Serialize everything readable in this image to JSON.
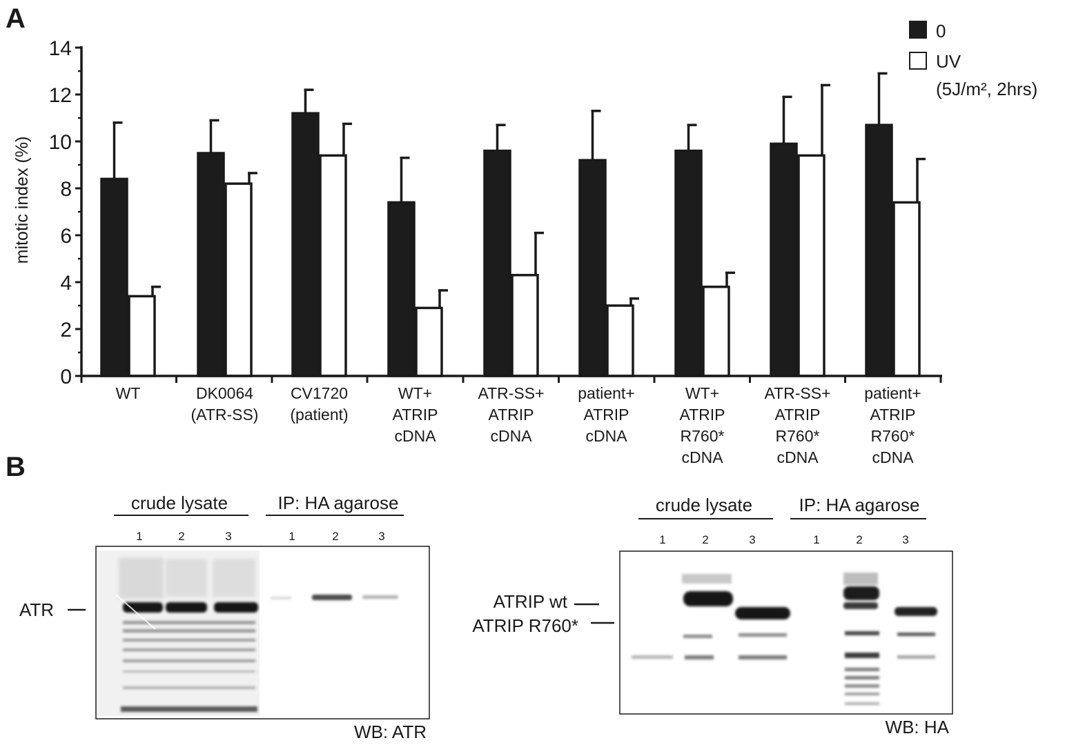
{
  "panel_a_label": "A",
  "panel_b_label": "B",
  "chart_data": {
    "type": "bar",
    "ylabel": "mitotic index (%)",
    "xlabel": "",
    "ylim": [
      0,
      14
    ],
    "yticks": [
      "0",
      "2",
      "4",
      "6",
      "8",
      "10",
      "12",
      "14"
    ],
    "grid": false,
    "legend_position": "top-right",
    "categories": [
      [
        "WT"
      ],
      [
        "DK0064",
        "(ATR-SS)"
      ],
      [
        "CV1720",
        "(patient)"
      ],
      [
        "WT+",
        "ATRIP",
        "cDNA"
      ],
      [
        "ATR-SS+",
        "ATRIP",
        "cDNA"
      ],
      [
        "patient+",
        "ATRIP",
        "cDNA"
      ],
      [
        "WT+",
        "ATRIP",
        "R760*",
        "cDNA"
      ],
      [
        "ATR-SS+",
        "ATRIP",
        "R760*",
        "cDNA"
      ],
      [
        "patient+",
        "ATRIP",
        "R760*",
        "cDNA"
      ]
    ],
    "series": [
      {
        "name": "0",
        "color": "#1c1c1c",
        "values": [
          8.4,
          9.5,
          11.2,
          7.4,
          9.6,
          9.2,
          9.6,
          9.9,
          10.7
        ],
        "errors": [
          2.4,
          1.4,
          1.0,
          1.9,
          1.1,
          2.1,
          1.1,
          2.0,
          2.2
        ]
      },
      {
        "name": "UV",
        "color": "#ffffff",
        "values": [
          3.4,
          8.2,
          9.4,
          2.9,
          4.3,
          3.0,
          3.8,
          9.4,
          7.4
        ],
        "errors": [
          0.4,
          0.45,
          1.35,
          0.75,
          1.8,
          0.3,
          0.6,
          3.0,
          1.85
        ]
      }
    ],
    "legend_note": "(5J/m², 2hrs)"
  },
  "blot_left": {
    "group1": "crude lysate",
    "group2": "IP: HA agarose",
    "lanes": [
      "1",
      "2",
      "3",
      "1",
      "2",
      "3"
    ],
    "band_label": "ATR",
    "wb_label": "WB: ATR"
  },
  "blot_right": {
    "group1": "crude lysate",
    "group2": "IP: HA agarose",
    "lanes": [
      "1",
      "2",
      "3",
      "1",
      "2",
      "3"
    ],
    "band_label_1": "ATRIP wt",
    "band_label_2": "ATRIP R760*",
    "wb_label": "WB: HA"
  }
}
